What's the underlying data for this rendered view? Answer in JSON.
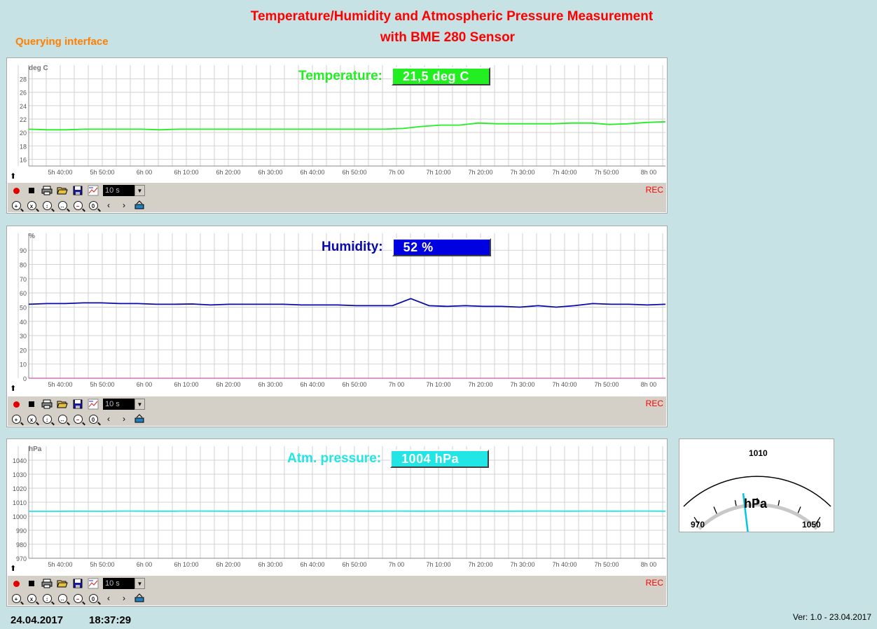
{
  "header": {
    "title_line1": "Temperature/Humidity and Atmospheric Pressure Measurement",
    "title_line2": "with BME 280 Sensor",
    "query_link": "Querying interface"
  },
  "x_ticks": [
    "5h 40:00",
    "5h 50:00",
    "6h 00",
    "6h 10:00",
    "6h 20:00",
    "6h 30:00",
    "6h 40:00",
    "6h 50:00",
    "7h 00",
    "7h 10:00",
    "7h 20:00",
    "7h 30:00",
    "7h 40:00",
    "7h 50:00",
    "8h 00"
  ],
  "toolbar": {
    "interval": "10 s",
    "rec": "REC"
  },
  "colors": {
    "temperature": "#22ee22",
    "humidity": "#0a0aa8",
    "pressure": "#22e6e6",
    "title": "#ff0000"
  },
  "temperature": {
    "label": "Temperature:",
    "value": "21,5  deg C",
    "unit": "deg C",
    "ylim": [
      15,
      29
    ],
    "yticks": [
      16,
      18,
      20,
      22,
      24,
      26,
      28
    ],
    "label_color": "#22ee22",
    "box_color": "#22ee22",
    "series": [
      20.5,
      20.4,
      20.4,
      20.5,
      20.5,
      20.5,
      20.5,
      20.4,
      20.5,
      20.5,
      20.5,
      20.5,
      20.5,
      20.5,
      20.5,
      20.5,
      20.5,
      20.5,
      20.5,
      20.5,
      20.6,
      20.9,
      21.1,
      21.1,
      21.4,
      21.3,
      21.3,
      21.3,
      21.3,
      21.4,
      21.4,
      21.2,
      21.3,
      21.5,
      21.6
    ]
  },
  "humidity": {
    "label": "Humidity:",
    "value": "52  %",
    "unit": "%",
    "ylim": [
      0,
      97
    ],
    "yticks": [
      0,
      10,
      20,
      30,
      40,
      50,
      60,
      70,
      80,
      90
    ],
    "label_color": "#0a0aa8",
    "box_color": "#0000e0",
    "series": [
      52,
      52.5,
      52.5,
      53,
      53,
      52.5,
      52.5,
      52,
      52,
      52.2,
      51.5,
      52,
      52,
      52,
      52,
      51.5,
      51.5,
      51.5,
      51,
      51,
      51,
      56,
      51,
      50.5,
      51,
      50.5,
      50.5,
      50,
      51,
      50,
      51,
      52.5,
      52,
      52,
      51.5,
      52
    ]
  },
  "pressure": {
    "label": "Atm. pressure:",
    "value": "1004  hPa",
    "unit": "hPa",
    "ylim": [
      970,
      1045
    ],
    "yticks": [
      970,
      980,
      990,
      1000,
      1010,
      1020,
      1030,
      1040
    ],
    "label_color": "#22e6e6",
    "box_color": "#22e6e6",
    "series": [
      1003.5,
      1003.5,
      1003.6,
      1003.5,
      1003.7,
      1003.6,
      1003.6,
      1003.7,
      1003.6,
      1003.6,
      1003.7,
      1003.6,
      1003.7,
      1003.7,
      1003.6,
      1003.7,
      1003.6,
      1003.7,
      1003.7,
      1003.6,
      1003.6,
      1003.7,
      1003.6,
      1003.7,
      1003.6,
      1003.7,
      1003.6
    ]
  },
  "gauge": {
    "min": "970",
    "mid": "1010",
    "max": "1050",
    "unit": "hPa",
    "value": 1004,
    "range": [
      970,
      1050
    ]
  },
  "footer": {
    "date": "24.04.2017",
    "time": "18:37:29",
    "version": "Ver: 1.0 - 23.04.2017"
  }
}
